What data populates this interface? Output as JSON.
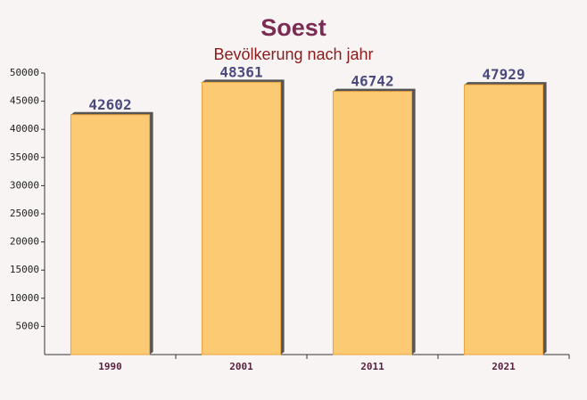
{
  "chart_data": {
    "type": "bar",
    "title": "Soest",
    "subtitle": "Bevölkerung nach jahr",
    "categories": [
      "1990",
      "2001",
      "2011",
      "2021"
    ],
    "values": [
      42602,
      48361,
      46742,
      47929
    ],
    "color": "#fdc76d",
    "ylim": [
      0,
      50000
    ],
    "yticks": [
      5000,
      10000,
      15000,
      20000,
      25000,
      30000,
      35000,
      40000,
      45000,
      50000
    ]
  }
}
